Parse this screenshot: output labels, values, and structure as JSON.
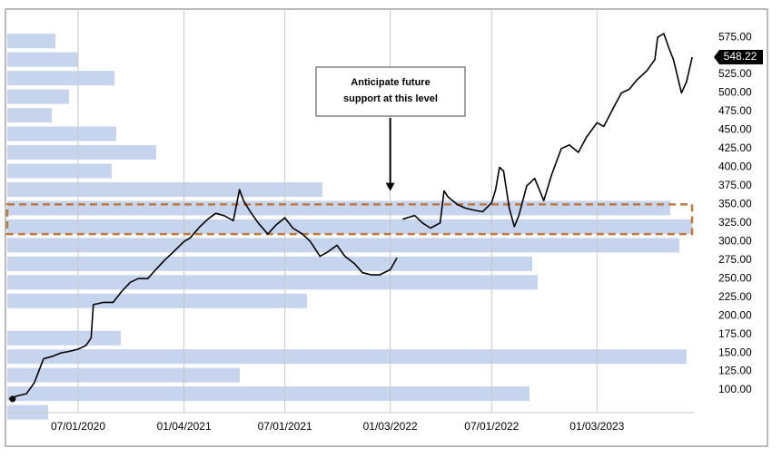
{
  "chart_data": {
    "type": "line",
    "xlim": [
      "02/27/2020",
      "06/23/2023"
    ],
    "ylim": [
      69.5,
      613
    ],
    "xticks": [
      "07/01/2020",
      "01/04/2021",
      "07/01/2021",
      "01/03/2022",
      "07/01/2022",
      "01/03/2023"
    ],
    "yticks": [
      {
        "value": 100,
        "label": "100.00"
      },
      {
        "value": 125,
        "label": "125.00"
      },
      {
        "value": 150,
        "label": "150.00"
      },
      {
        "value": 175,
        "label": "175.00"
      },
      {
        "value": 200,
        "label": "200.00"
      },
      {
        "value": 225,
        "label": "225.00"
      },
      {
        "value": 250,
        "label": "250.00"
      },
      {
        "value": 275,
        "label": "275.00"
      },
      {
        "value": 300,
        "label": "300.00"
      },
      {
        "value": 325,
        "label": "325.00"
      },
      {
        "value": 350,
        "label": "350.00"
      },
      {
        "value": 375,
        "label": "375.00"
      },
      {
        "value": 400,
        "label": "400.00"
      },
      {
        "value": 425,
        "label": "425.00"
      },
      {
        "value": 450,
        "label": "450.00"
      },
      {
        "value": 475,
        "label": "475.00"
      },
      {
        "value": 500,
        "label": "500.00"
      },
      {
        "value": 525,
        "label": "525.00"
      },
      {
        "value": 550,
        "label": "550.00"
      },
      {
        "value": 575,
        "label": "575.00"
      }
    ],
    "grid": true,
    "series": [
      {
        "color": "#000000",
        "x": [
          "03/01/2020",
          "03/15/2020",
          "04/01/2020",
          "04/15/2020",
          "05/01/2020",
          "05/15/2020",
          "06/01/2020",
          "06/15/2020",
          "07/01/2020",
          "07/15/2020",
          "07/24/2020",
          "07/28/2020",
          "08/15/2020",
          "09/01/2020",
          "09/15/2020",
          "10/01/2020",
          "10/15/2020",
          "11/01/2020",
          "11/15/2020",
          "12/01/2020",
          "12/15/2020",
          "01/04/2021",
          "01/15/2021",
          "02/01/2021",
          "02/15/2021",
          "03/01/2021",
          "03/15/2021",
          "04/01/2021",
          "04/12/2021",
          "04/19/2021",
          "05/01/2021",
          "05/15/2021",
          "06/01/2021",
          "06/15/2021",
          "07/01/2021",
          "07/15/2021",
          "08/01/2021",
          "08/15/2021",
          "09/01/2021",
          "09/15/2021",
          "10/01/2021",
          "10/15/2021",
          "11/01/2021",
          "11/15/2021",
          "12/01/2021",
          "12/15/2021",
          "01/03/2022",
          "01/15/2022",
          "01/20/2022",
          "01/25/2022",
          "02/15/2022",
          "03/01/2022",
          "03/15/2022",
          "04/01/2022",
          "04/08/2022",
          "04/15/2022",
          "05/01/2022",
          "05/15/2022",
          "06/01/2022",
          "06/15/2022",
          "07/01/2022",
          "07/08/2022",
          "07/15/2022",
          "07/22/2022",
          "08/01/2022",
          "08/10/2022",
          "08/18/2022",
          "09/01/2022",
          "09/15/2022",
          "10/01/2022",
          "10/15/2022",
          "11/01/2022",
          "11/15/2022",
          "12/01/2022",
          "12/15/2022",
          "01/03/2023",
          "01/15/2023",
          "02/01/2023",
          "02/15/2023",
          "03/01/2023",
          "03/15/2023",
          "04/01/2023",
          "04/15/2023",
          "04/20/2023",
          "05/01/2023",
          "05/10/2023",
          "05/18/2023",
          "06/01/2023",
          "06/10/2023",
          "06/20/2023"
        ],
        "values": [
          88,
          92,
          95,
          110,
          142,
          145,
          150,
          152,
          155,
          160,
          170,
          215,
          218,
          218,
          232,
          245,
          250,
          250,
          262,
          275,
          285,
          300,
          305,
          320,
          330,
          338,
          335,
          328,
          370,
          355,
          340,
          325,
          310,
          322,
          332,
          318,
          310,
          300,
          280,
          286,
          295,
          280,
          270,
          258,
          255,
          255,
          262,
          278,
          null,
          330,
          335,
          325,
          318,
          325,
          368,
          360,
          350,
          345,
          342,
          340,
          352,
          370,
          400,
          395,
          345,
          320,
          335,
          375,
          385,
          355,
          390,
          425,
          430,
          420,
          440,
          460,
          455,
          480,
          500,
          505,
          518,
          530,
          545,
          575,
          580,
          560,
          545,
          500,
          515,
          548.22
        ],
        "value_labels": {
          "last": "548.22"
        }
      }
    ],
    "volume_profile": {
      "color": "#c6d4ee",
      "levels": [
        70,
        95,
        120,
        145,
        170,
        195,
        220,
        245,
        270,
        295,
        320,
        345,
        370,
        395,
        420,
        445,
        470,
        495,
        520,
        545,
        570
      ],
      "values": [
        45,
        575,
        256,
        748,
        125,
        0,
        330,
        584,
        578,
        740,
        754,
        730,
        347,
        115,
        164,
        120,
        49,
        68,
        118,
        78,
        53
      ]
    },
    "support_zone": [
      310,
      350
    ],
    "support_zone_color": "#c07a3f",
    "annotation": {
      "lines": [
        "Anticipate future",
        "support at this level"
      ],
      "x": "01/03/2022",
      "y": 368
    }
  }
}
